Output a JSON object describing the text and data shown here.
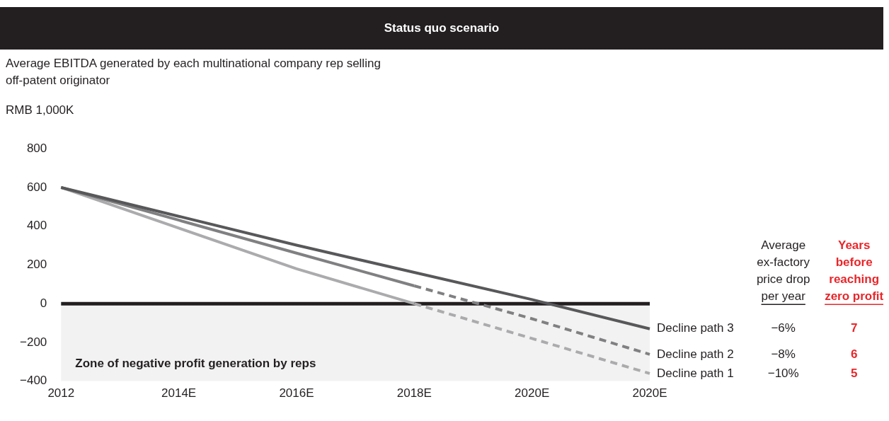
{
  "chart_data": {
    "type": "line",
    "title": "Status quo scenario",
    "subtitle": "Average EBITDA generated by each multinational company rep selling off-patent originator",
    "ylabel": "RMB 1,000K",
    "categories": [
      "2012",
      "2014E",
      "2016E",
      "2018E",
      "2020E",
      "2020E"
    ],
    "ylim": [
      -400,
      800
    ],
    "yticks": [
      {
        "value": -400,
        "label": "−400"
      },
      {
        "value": -200,
        "label": "−200"
      },
      0,
      200,
      400,
      600,
      800
    ],
    "grid": false,
    "marker": "none",
    "series": [
      {
        "name": "Decline path 3",
        "color": "#58585a",
        "values": [
          600,
          451,
          302,
          161,
          21,
          -130
        ],
        "line_style": "solid"
      },
      {
        "name": "Decline path 2",
        "color": "#808082",
        "values": [
          null,
          null,
          null,
          92,
          -78,
          -262
        ],
        "line_style": "dashed"
      },
      {
        "color": "#808082",
        "values": [
          600,
          431,
          261,
          92,
          null,
          null
        ],
        "line_style": "solid"
      },
      {
        "name": "Decline path 1",
        "color": "#ababad",
        "values": [
          null,
          null,
          null,
          0,
          -180,
          -361
        ],
        "line_style": "dashed"
      },
      {
        "color": "#ababad",
        "values": [
          600,
          390,
          180,
          0,
          null,
          null
        ],
        "line_style": "solid"
      }
    ],
    "ref_lines": [
      {
        "axis": "y",
        "value": 0,
        "color": "#231f20"
      }
    ],
    "bands": [
      {
        "axis": "y",
        "from": -400,
        "to": 0,
        "label": "Zone of negative profit generation by reps",
        "color": "#f2f2f2"
      }
    ],
    "annotations": [
      "Average ex-factory price drop per year",
      "Years before reaching zero profit",
      "−6%",
      "7",
      "−8%",
      "6",
      "−10%",
      "5"
    ]
  }
}
